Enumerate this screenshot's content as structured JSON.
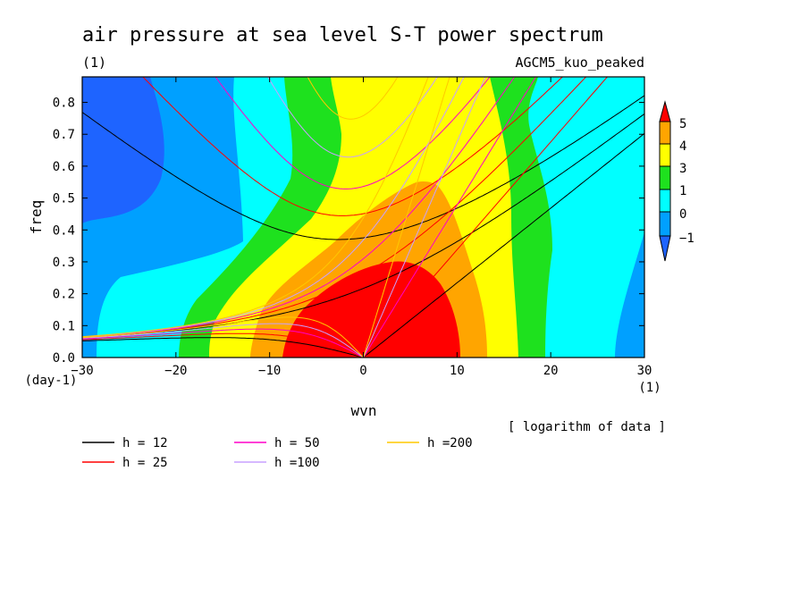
{
  "chart_data": {
    "type": "heatmap",
    "title": "air pressure at sea level S-T power spectrum",
    "subtitle_left": "(1)",
    "subtitle_right": "AGCM5_kuo_peaked",
    "xlabel": "wvn",
    "ylabel": "freq",
    "x_unit": "(1)",
    "y_unit": "(day-1)",
    "data_note": "[ logarithm of data ]",
    "xlim": [
      -30,
      30
    ],
    "ylim": [
      0,
      0.88
    ],
    "x_ticks": [
      -30,
      -20,
      -10,
      0,
      10,
      20,
      30
    ],
    "x_tick_labels": [
      "−30",
      "−20",
      "−10",
      "0",
      "10",
      "20",
      "30"
    ],
    "y_ticks": [
      0.0,
      0.1,
      0.2,
      0.3,
      0.4,
      0.5,
      0.6,
      0.7,
      0.8
    ],
    "y_tick_labels": [
      "0.0",
      "0.1",
      "0.2",
      "0.3",
      "0.4",
      "0.5",
      "0.6",
      "0.7",
      "0.8"
    ],
    "colorbar": {
      "labels": [
        "5",
        "4",
        "3",
        "1",
        "0",
        "−1"
      ],
      "colors": [
        "#ff0000",
        "#ffa500",
        "#ffff00",
        "#1ee11e",
        "#00ffff",
        "#00a0ff",
        "#1e64ff"
      ],
      "extend": "both"
    },
    "contour_levels": [
      {
        "level": "5",
        "color": "#ff0000",
        "approx_region": "wvn -8 to 10, freq 0 to 0.30"
      },
      {
        "level": "4",
        "color": "#ffa500",
        "approx_region": "wvn -12 to 13, freq 0 to 0.55"
      },
      {
        "level": "3",
        "color": "#ffff00",
        "approx_region": "wvn -15 to 17, freq 0 to 0.88"
      },
      {
        "level": "1",
        "color": "#1ee11e",
        "approx_region": "wvn -20 to 20"
      },
      {
        "level": "0",
        "color": "#00ffff",
        "approx_region": "outer bands"
      },
      {
        "level": "-1",
        "color": "#00a0ff",
        "approx_region": "wvn -30 to -18 and 27 to 30"
      },
      {
        "level": "<-1",
        "color": "#1e64ff",
        "approx_region": "wvn -30 to -22, freq 0.4 to 0.88"
      }
    ],
    "dispersion_curves": [
      {
        "name": "h = 12",
        "color": "#000000"
      },
      {
        "name": "h = 25",
        "color": "#ff0000"
      },
      {
        "name": "h = 50",
        "color": "#ff00c8"
      },
      {
        "name": "h =100",
        "color": "#c8a0ff"
      },
      {
        "name": "h =200",
        "color": "#ffc800"
      }
    ]
  },
  "legend": {
    "items": [
      {
        "label": "h = 12",
        "color": "#000000"
      },
      {
        "label": "h = 25",
        "color": "#ff0000"
      },
      {
        "label": "h = 50",
        "color": "#ff00c8"
      },
      {
        "label": "h =100",
        "color": "#c8a0ff"
      },
      {
        "label": "h =200",
        "color": "#ffc800"
      }
    ]
  }
}
